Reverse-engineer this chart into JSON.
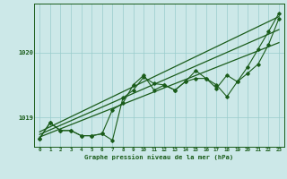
{
  "xlabel": "Graphe pression niveau de la mer (hPa)",
  "x_ticks": [
    0,
    1,
    2,
    3,
    4,
    5,
    6,
    7,
    8,
    9,
    10,
    11,
    12,
    13,
    14,
    15,
    16,
    17,
    18,
    19,
    20,
    21,
    22,
    23
  ],
  "xlim": [
    -0.5,
    23.5
  ],
  "ylim": [
    1018.55,
    1020.75
  ],
  "yticks": [
    1019.0,
    1020.0
  ],
  "bg_color": "#cce8e8",
  "grid_color": "#99cccc",
  "line_color": "#1a5c1a",
  "text_color": "#1a5c1a",
  "series1": [
    1018.68,
    1018.92,
    1018.8,
    1018.8,
    1018.72,
    1018.72,
    1018.75,
    1018.65,
    1019.3,
    1019.42,
    1019.62,
    1019.52,
    1019.5,
    1019.42,
    1019.55,
    1019.6,
    1019.6,
    1019.45,
    1019.65,
    1019.55,
    1019.68,
    1019.82,
    1020.12,
    1020.52
  ],
  "series2": [
    1018.68,
    1018.92,
    1018.8,
    1018.8,
    1018.72,
    1018.72,
    1018.75,
    1019.12,
    1019.22,
    1019.5,
    1019.65,
    1019.42,
    1019.5,
    1019.42,
    1019.55,
    1019.72,
    1019.6,
    1019.5,
    1019.32,
    1019.55,
    1019.78,
    1020.05,
    1020.32,
    1020.6
  ],
  "trend1_x": [
    0,
    23
  ],
  "trend1_y": [
    1018.7,
    1020.15
  ],
  "trend2_x": [
    0,
    23
  ],
  "trend2_y": [
    1018.78,
    1020.55
  ],
  "trend3_x": [
    0,
    23
  ],
  "trend3_y": [
    1018.74,
    1020.35
  ]
}
